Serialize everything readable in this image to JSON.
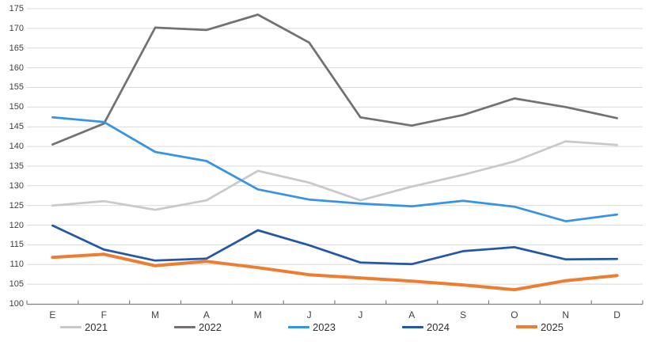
{
  "chart_data": {
    "type": "line",
    "title": "",
    "xlabel": "",
    "ylabel": "",
    "categories": [
      "E",
      "F",
      "M",
      "A",
      "M",
      "J",
      "J",
      "A",
      "S",
      "O",
      "N",
      "D"
    ],
    "series": [
      {
        "name": "2021",
        "color": "#C9C9C9",
        "stroke_width": 2.75,
        "values": [
          125.0,
          126.1,
          123.9,
          126.3,
          133.8,
          130.8,
          126.3,
          129.8,
          132.8,
          136.2,
          141.3,
          140.4
        ]
      },
      {
        "name": "2022",
        "color": "#767171",
        "stroke_width": 2.75,
        "values": [
          140.5,
          145.8,
          170.2,
          169.6,
          173.5,
          166.4,
          147.4,
          145.3,
          148.0,
          152.2,
          150.0,
          147.2
        ]
      },
      {
        "name": "2023",
        "color": "#3793E6",
        "stroke_width": 2.75,
        "values": [
          147.4,
          146.2,
          138.6,
          136.3,
          129.1,
          126.5,
          125.5,
          124.8,
          126.2,
          124.7,
          121.0,
          122.7
        ]
      },
      {
        "name": "2024",
        "color": "#2457A6",
        "stroke_width": 2.75,
        "values": [
          119.9,
          113.8,
          111.0,
          111.5,
          118.7,
          114.9,
          110.5,
          110.1,
          113.4,
          114.4,
          111.3,
          111.4
        ]
      },
      {
        "name": "2025",
        "color": "#ED7D31",
        "stroke_width": 4,
        "values": [
          111.8,
          112.6,
          109.7,
          110.8,
          109.2,
          107.4,
          106.6,
          105.8,
          104.8,
          103.6,
          105.9,
          107.2
        ]
      }
    ],
    "ylim": [
      100,
      175
    ],
    "ytick_step": 5,
    "yticks": [
      "100",
      "105",
      "110",
      "115",
      "120",
      "125",
      "130",
      "135",
      "140",
      "145",
      "150",
      "155",
      "160",
      "165",
      "170",
      "175"
    ],
    "grid": true,
    "legend_position": "bottom",
    "colors": {
      "grid": "#D9D9D9",
      "axis": "#808080",
      "tick_label": "#404040"
    }
  }
}
